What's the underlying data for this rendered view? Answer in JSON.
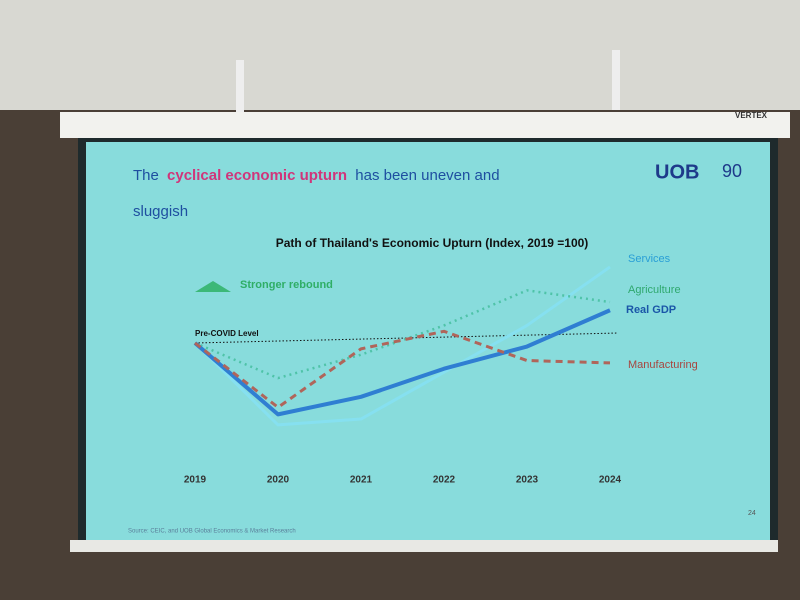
{
  "projector_brand": "VERTEX",
  "slide": {
    "title_parts": [
      "The",
      "cyclical economic upturn",
      "has been uneven and",
      "sluggish"
    ],
    "logo": "UOB",
    "logo_years": "90",
    "source": "Source: CEIC, and UOB Global Economics & Market Research",
    "page_number": "24"
  },
  "chart_data": {
    "type": "line",
    "title": "Path of Thailand's Economic Upturn (Index, 2019 =100)",
    "categories": [
      "2019",
      "2020",
      "2021",
      "2022",
      "2023",
      "2024"
    ],
    "series": [
      {
        "name": "Services",
        "color": "#86e0f0",
        "style": "solid",
        "label_color": "#2a9fd6",
        "values": [
          100,
          93,
          93.5,
          97.5,
          101.5,
          106.5
        ]
      },
      {
        "name": "Agriculture",
        "color": "#4fc3a8",
        "style": "dotted",
        "label_color": "#2fa86e",
        "values": [
          100,
          97,
          99,
          101.5,
          104.5,
          103.5
        ]
      },
      {
        "name": "Real GDP",
        "color": "#2f7ed2",
        "style": "solid-bold",
        "label_color": "#1a56a8",
        "values": [
          100,
          93.9,
          95.4,
          97.8,
          99.7,
          102.8
        ]
      },
      {
        "name": "Manufacturing",
        "color": "#b0655a",
        "style": "dashed",
        "label_color": "#a8453f",
        "values": [
          100,
          94.5,
          99.5,
          101,
          98.5,
          98.3
        ]
      }
    ],
    "reference_line": {
      "label": "Pre-COVID Level",
      "value": 100
    },
    "annotation": "Stronger rebound",
    "ylim": [
      90,
      110
    ]
  }
}
